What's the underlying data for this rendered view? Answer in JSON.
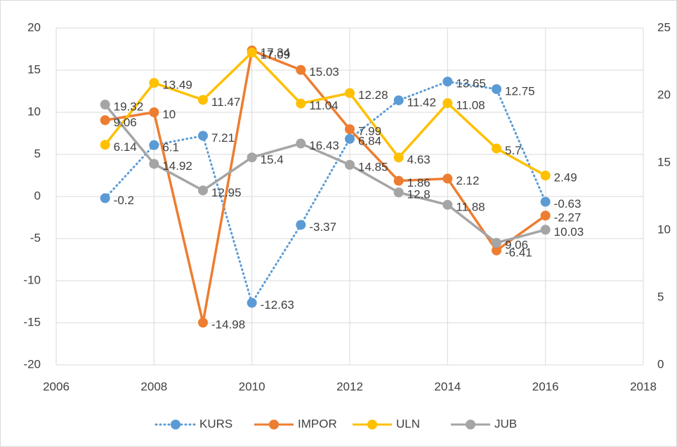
{
  "chart_data": {
    "type": "line",
    "x": [
      2007,
      2008,
      2009,
      2010,
      2011,
      2012,
      2013,
      2014,
      2015,
      2016
    ],
    "series": [
      {
        "name": "KURS",
        "color": "#5b9bd5",
        "dash": "dotted",
        "values": [
          -0.2,
          6.1,
          7.21,
          -12.63,
          -3.37,
          6.84,
          11.42,
          13.65,
          12.75,
          -0.63
        ]
      },
      {
        "name": "IMPOR",
        "color": "#ed7d31",
        "values": [
          9.06,
          10,
          -14.98,
          17.34,
          15.03,
          7.99,
          1.86,
          2.12,
          -6.41,
          -2.27
        ]
      },
      {
        "name": "ULN",
        "color": "#ffc000",
        "values": [
          6.14,
          13.49,
          11.47,
          17.09,
          11.04,
          12.28,
          4.63,
          11.08,
          5.7,
          2.49
        ]
      },
      {
        "name": "JUB",
        "color": "#a5a5a5",
        "axis": "y2",
        "values": [
          19.32,
          14.92,
          12.95,
          15.4,
          16.43,
          14.85,
          12.8,
          11.88,
          9.06,
          10.03
        ]
      }
    ],
    "xlim": [
      2006,
      2018
    ],
    "xticks": [
      2006,
      2008,
      2010,
      2012,
      2014,
      2016,
      2018
    ],
    "ylim": [
      -20,
      20
    ],
    "yticks": [
      -20,
      -15,
      -10,
      -5,
      0,
      5,
      10,
      15,
      20
    ],
    "y2lim": [
      0,
      25
    ],
    "y2ticks": [
      0,
      5,
      10,
      15,
      20,
      25
    ],
    "grid": true,
    "legend": "bottom"
  }
}
